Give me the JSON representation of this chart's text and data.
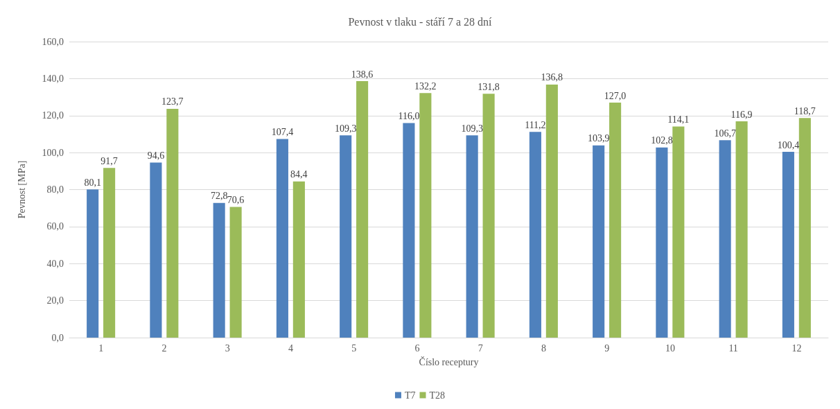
{
  "chart_data": {
    "type": "bar",
    "title": "Pevnost v tlaku - stáří 7 a 28 dní",
    "xlabel": "Číslo receptury",
    "ylabel": "Pevnost [MPa]",
    "categories": [
      "1",
      "2",
      "3",
      "4",
      "5",
      "6",
      "7",
      "8",
      "9",
      "10",
      "11",
      "12"
    ],
    "series": [
      {
        "name": "T7",
        "color": "#4f81bd",
        "values": [
          80.1,
          94.6,
          72.8,
          107.4,
          109.3,
          116.0,
          109.3,
          111.2,
          103.9,
          102.8,
          106.7,
          100.4
        ],
        "value_labels": [
          "80,1",
          "94,6",
          "72,8",
          "107,4",
          "109,3",
          "116,0",
          "109,3",
          "111,2",
          "103,9",
          "102,8",
          "106,7",
          "100,4"
        ]
      },
      {
        "name": "T28",
        "color": "#9bbb59",
        "values": [
          91.7,
          123.7,
          70.6,
          84.4,
          138.6,
          132.2,
          131.8,
          136.8,
          127.0,
          114.1,
          116.9,
          118.7
        ],
        "value_labels": [
          "91,7",
          "123,7",
          "70,6",
          "84,4",
          "138,6",
          "132,2",
          "131,8",
          "136,8",
          "127,0",
          "114,1",
          "116,9",
          "118,7"
        ]
      }
    ],
    "ylim": [
      0,
      160
    ],
    "yticks": [
      {
        "value": 0,
        "label": "0,0"
      },
      {
        "value": 20,
        "label": "20,0"
      },
      {
        "value": 40,
        "label": "40,0"
      },
      {
        "value": 60,
        "label": "60,0"
      },
      {
        "value": 80,
        "label": "80,0"
      },
      {
        "value": 100,
        "label": "100,0"
      },
      {
        "value": 120,
        "label": "120,0"
      },
      {
        "value": 140,
        "label": "140,0"
      },
      {
        "value": 160,
        "label": "160,0"
      }
    ],
    "grid": "y",
    "legend": "bottom"
  }
}
